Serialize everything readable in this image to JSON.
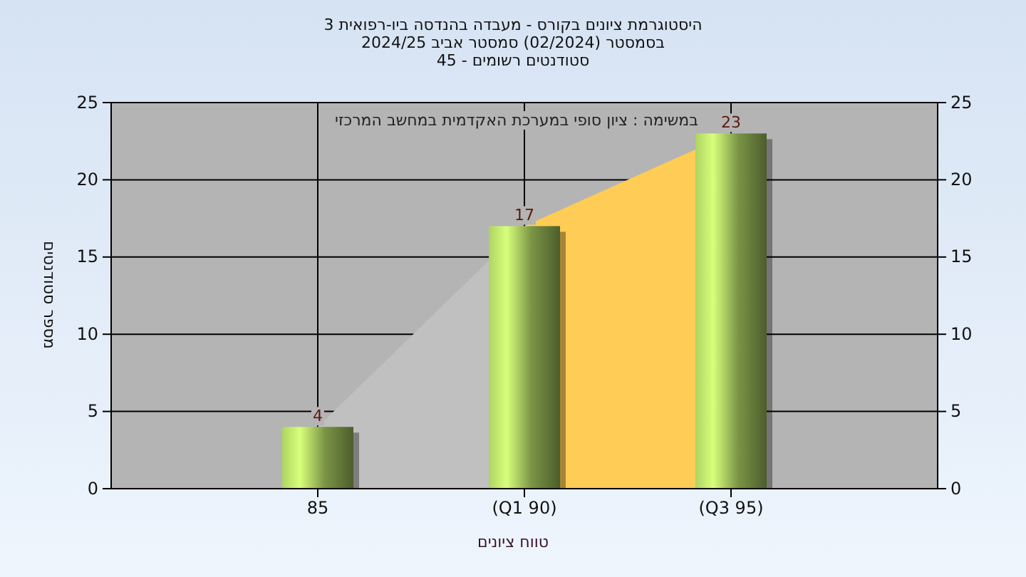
{
  "chart_data": {
    "type": "bar",
    "title": "היסטוגרמת ציונים בקורס - מעבדה בהנדסה ביו-רפואית 3",
    "subtitle": [
      "בסמסטר  (02/2024)  סמסטר אביב 2024/25",
      "סטודנטים רשומים - 45"
    ],
    "xlabel": "טווח ציונים",
    "ylabel": "מספר סטודנטים",
    "annotations": [
      "במשימה : ציון סופי במערכת האקדמית במחשב המרכזי"
    ],
    "categories": [
      "85",
      "(Q1 90)",
      "(Q3 95)"
    ],
    "series": [
      {
        "type": "area",
        "color": "#c0c0c0",
        "values": [
          4,
          17,
          null
        ]
      },
      {
        "type": "area",
        "color": "#ffcc55",
        "values": [
          null,
          17,
          23
        ]
      },
      {
        "color": "#a8cc60",
        "values": [
          4,
          17,
          23
        ],
        "value_labels": [
          "4",
          "17",
          "23"
        ]
      }
    ],
    "ylim": [
      0,
      25
    ],
    "yticks": [
      0,
      5,
      10,
      15,
      20,
      25
    ],
    "y2lim": [
      0,
      25
    ],
    "y2ticks": [
      0,
      5,
      10,
      15,
      20,
      25
    ],
    "grid": true
  }
}
